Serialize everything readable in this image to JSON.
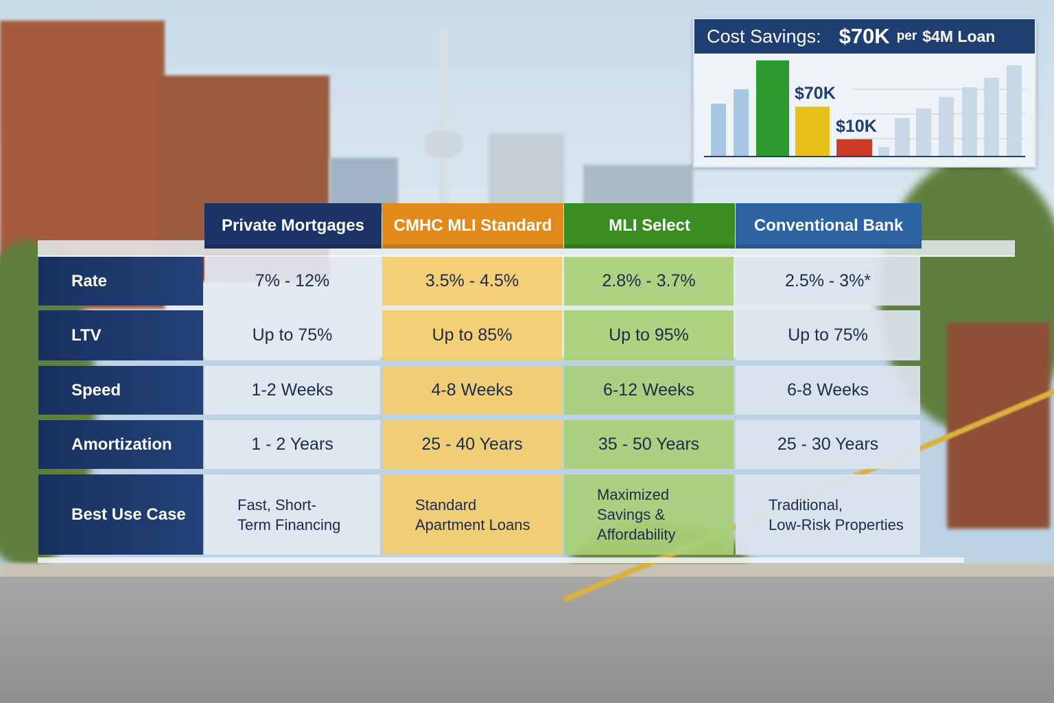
{
  "table": {
    "columns": [
      {
        "label": "Private Mortgages",
        "color": "#1b3465"
      },
      {
        "label": "CMHC MLI Standard",
        "color": "#e18a1c"
      },
      {
        "label": "MLI Select",
        "color": "#3a8d22"
      },
      {
        "label": "Conventional Bank",
        "color": "#2c63a3"
      }
    ],
    "rows": [
      {
        "label": "Rate",
        "values": [
          "7% - 12%",
          "3.5% - 4.5%",
          "2.8% - 3.7%",
          "2.5% - 3%*"
        ]
      },
      {
        "label": "LTV",
        "values": [
          "Up to 75%",
          "Up to 85%",
          "Up to 95%",
          "Up to 75%"
        ]
      },
      {
        "label": "Speed",
        "values": [
          "1-2 Weeks",
          "4-8 Weeks",
          "6-12 Weeks",
          "6-8 Weeks"
        ]
      },
      {
        "label": "Amortization",
        "values": [
          "1 - 2 Years",
          "25 - 40 Years",
          "35 - 50 Years",
          "25 - 30 Years"
        ]
      },
      {
        "label": "Best Use Case",
        "values": [
          "Fast, Short-\nTerm Financing",
          "Standard\nApartment Loans",
          "Maximized\nSavings &\nAffordability",
          "Traditional,\nLow-Risk Properties"
        ]
      }
    ]
  },
  "inset": {
    "title": "Cost Savings:",
    "amount": "$70K",
    "per": "per",
    "loan": "$4M Loan",
    "label_high": "$70K",
    "label_low": "$10K",
    "bars": [
      {
        "value": 0.55,
        "color": "#a9c6e4"
      },
      {
        "value": 0.7,
        "color": "#a9c6e4"
      },
      {
        "value": 1.0,
        "color": "#2e9a30"
      },
      {
        "value": 0.52,
        "color": "#e8c21a"
      },
      {
        "value": 0.18,
        "color": "#cc3b27"
      },
      {
        "value": 0.1,
        "color": "#c8d8e8"
      },
      {
        "value": 0.4,
        "color": "#c8d8e8"
      },
      {
        "value": 0.5,
        "color": "#c8d8e8"
      },
      {
        "value": 0.62,
        "color": "#c8d8e8"
      },
      {
        "value": 0.72,
        "color": "#c8d8e8"
      },
      {
        "value": 0.82,
        "color": "#c8d8e8"
      },
      {
        "value": 0.95,
        "color": "#c8d8e8"
      }
    ]
  }
}
